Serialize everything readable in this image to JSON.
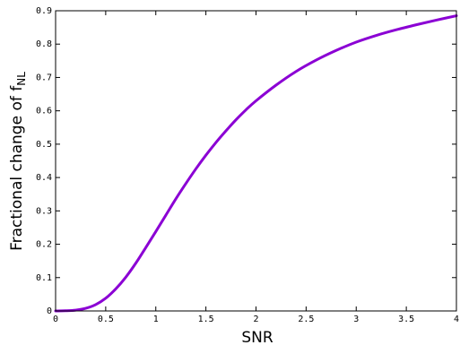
{
  "chart_data": {
    "type": "line",
    "title": "",
    "xlabel": "SNR",
    "ylabel": {
      "prefix": "Fractional change of f",
      "subscript": "NL"
    },
    "xlim": [
      0,
      4
    ],
    "ylim": [
      0,
      0.9
    ],
    "x_ticks": [
      0,
      0.5,
      1,
      1.5,
      2,
      2.5,
      3,
      3.5,
      4
    ],
    "x_tick_labels": [
      "0",
      "0.5",
      "1",
      "1.5",
      "2",
      "2.5",
      "3",
      "3.5",
      "4"
    ],
    "y_ticks": [
      0,
      0.1,
      0.2,
      0.3,
      0.4,
      0.5,
      0.6,
      0.7,
      0.8,
      0.9
    ],
    "y_tick_labels": [
      "0",
      "0.1",
      "0.2",
      "0.3",
      "0.4",
      "0.5",
      "0.6",
      "0.7",
      "0.8",
      "0.9"
    ],
    "grid": false,
    "legend": "none",
    "series": [
      {
        "color": "#8b00d4",
        "x": [
          0,
          0.1,
          0.2,
          0.3,
          0.4,
          0.5,
          0.6,
          0.7,
          0.8,
          0.9,
          1.0,
          1.1,
          1.2,
          1.3,
          1.4,
          1.5,
          1.6,
          1.7,
          1.8,
          1.9,
          2.0,
          2.2,
          2.4,
          2.6,
          2.8,
          3.0,
          3.2,
          3.4,
          3.6,
          3.8,
          4.0
        ],
        "y": [
          0,
          0.0005,
          0.0024,
          0.0078,
          0.019,
          0.038,
          0.066,
          0.101,
          0.143,
          0.19,
          0.238,
          0.287,
          0.336,
          0.382,
          0.426,
          0.467,
          0.505,
          0.54,
          0.573,
          0.603,
          0.63,
          0.677,
          0.718,
          0.752,
          0.781,
          0.806,
          0.826,
          0.843,
          0.858,
          0.872,
          0.885
        ]
      }
    ]
  }
}
